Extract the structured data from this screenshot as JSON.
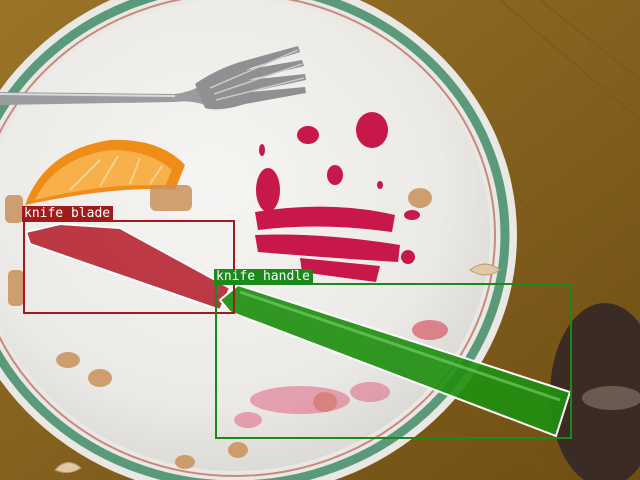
{
  "image": {
    "description_labels": [
      "plate",
      "fork",
      "orange slice",
      "knife",
      "table"
    ]
  },
  "detections": [
    {
      "label": "knife blade",
      "color": "#a01c1c",
      "mask_color": "#b01020"
    },
    {
      "label": "knife handle",
      "color": "#1a8a1a",
      "mask_color": "#1f8f10"
    }
  ],
  "colors": {
    "table": "#8a6520",
    "plate": "#f1f0ee",
    "plate_rim_band": "#5a9a7a",
    "sauce": "#c8184a",
    "orange": "#f0961e"
  }
}
